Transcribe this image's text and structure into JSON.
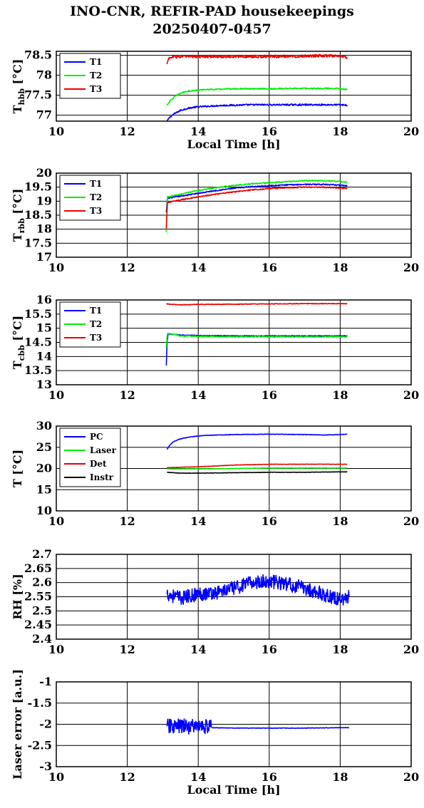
{
  "title": {
    "line1": "INO-CNR, REFIR-PAD housekeepings",
    "line2": "20250407-0457"
  },
  "colors": {
    "blue": "#0000ff",
    "green": "#00ee00",
    "red": "#ee0000",
    "black": "#000000"
  },
  "chart_data": [
    {
      "type": "line",
      "xlabel": "Local Time [h]",
      "ylabel_main": "T",
      "ylabel_sub": "hbb",
      "ylabel_tail": " [°C]",
      "xlim": [
        10,
        20
      ],
      "ylim": [
        76.85,
        78.6
      ],
      "xticks": [
        10,
        12,
        14,
        16,
        18,
        20
      ],
      "yticks": [
        77,
        77.5,
        78,
        78.5
      ],
      "ytick_labels": [
        "77",
        "77.5",
        "78",
        "78.5"
      ],
      "grid": true,
      "legend_position": "top-left",
      "series": [
        {
          "name": "T1",
          "color": "blue",
          "points": [
            [
              13.12,
              76.85
            ],
            [
              13.2,
              76.95
            ],
            [
              13.3,
              77.02
            ],
            [
              13.4,
              77.07
            ],
            [
              13.5,
              77.12
            ],
            [
              13.7,
              77.17
            ],
            [
              13.9,
              77.2
            ],
            [
              14.2,
              77.22
            ],
            [
              14.6,
              77.24
            ],
            [
              15,
              77.25
            ],
            [
              15.5,
              77.26
            ],
            [
              16,
              77.26
            ],
            [
              16.5,
              77.26
            ],
            [
              17,
              77.26
            ],
            [
              17.5,
              77.26
            ],
            [
              18,
              77.26
            ],
            [
              18.2,
              77.25
            ]
          ],
          "noise": 0.02
        },
        {
          "name": "T2",
          "color": "green",
          "points": [
            [
              13.12,
              77.25
            ],
            [
              13.2,
              77.35
            ],
            [
              13.3,
              77.44
            ],
            [
              13.4,
              77.5
            ],
            [
              13.5,
              77.55
            ],
            [
              13.7,
              77.6
            ],
            [
              13.9,
              77.62
            ],
            [
              14.2,
              77.64
            ],
            [
              14.6,
              77.65
            ],
            [
              15,
              77.66
            ],
            [
              15.5,
              77.66
            ],
            [
              16,
              77.66
            ],
            [
              16.5,
              77.67
            ],
            [
              17,
              77.67
            ],
            [
              17.5,
              77.67
            ],
            [
              18,
              77.67
            ],
            [
              18.2,
              77.64
            ]
          ],
          "noise": 0.015
        },
        {
          "name": "T3",
          "color": "red",
          "points": [
            [
              13.12,
              78.28
            ],
            [
              13.16,
              78.42
            ],
            [
              13.3,
              78.46
            ],
            [
              14,
              78.47
            ],
            [
              15,
              78.47
            ],
            [
              16,
              78.47
            ],
            [
              17,
              78.48
            ],
            [
              17.5,
              78.49
            ],
            [
              18,
              78.48
            ],
            [
              18.2,
              78.45
            ]
          ],
          "noise": 0.035
        }
      ]
    },
    {
      "type": "line",
      "xlabel": "",
      "ylabel_main": "T",
      "ylabel_sub": "rbb",
      "ylabel_tail": " [°C]",
      "xlim": [
        10,
        20
      ],
      "ylim": [
        17,
        20
      ],
      "xticks": [
        10,
        12,
        14,
        16,
        18,
        20
      ],
      "yticks": [
        17,
        17.5,
        18,
        18.5,
        19,
        19.5,
        20
      ],
      "ytick_labels": [
        "17",
        "17.5",
        "18",
        "18.5",
        "19",
        "19.5",
        "20"
      ],
      "grid": true,
      "legend_position": "top-left",
      "series": [
        {
          "name": "T1",
          "color": "blue",
          "points": [
            [
              13.1,
              18.6
            ],
            [
              13.13,
              19.1
            ],
            [
              13.5,
              19.18
            ],
            [
              14,
              19.28
            ],
            [
              14.5,
              19.38
            ],
            [
              15,
              19.46
            ],
            [
              15.5,
              19.52
            ],
            [
              16,
              19.55
            ],
            [
              16.5,
              19.58
            ],
            [
              17,
              19.6
            ],
            [
              17.5,
              19.6
            ],
            [
              18,
              19.57
            ],
            [
              18.2,
              19.55
            ]
          ],
          "noise": 0.02
        },
        {
          "name": "T2",
          "color": "green",
          "points": [
            [
              13.1,
              17.9
            ],
            [
              13.13,
              19.15
            ],
            [
              13.5,
              19.25
            ],
            [
              14,
              19.38
            ],
            [
              14.5,
              19.48
            ],
            [
              15,
              19.56
            ],
            [
              15.5,
              19.62
            ],
            [
              16,
              19.66
            ],
            [
              16.5,
              19.7
            ],
            [
              17,
              19.73
            ],
            [
              17.5,
              19.73
            ],
            [
              18,
              19.7
            ],
            [
              18.2,
              19.67
            ]
          ],
          "noise": 0.02
        },
        {
          "name": "T3",
          "color": "red",
          "points": [
            [
              13.1,
              18.0
            ],
            [
              13.13,
              18.95
            ],
            [
              13.5,
              19.05
            ],
            [
              14,
              19.15
            ],
            [
              14.5,
              19.25
            ],
            [
              15,
              19.33
            ],
            [
              15.5,
              19.4
            ],
            [
              16,
              19.45
            ],
            [
              16.5,
              19.48
            ],
            [
              17,
              19.5
            ],
            [
              17.5,
              19.5
            ],
            [
              18,
              19.47
            ],
            [
              18.2,
              19.45
            ]
          ],
          "noise": 0.02
        }
      ]
    },
    {
      "type": "line",
      "xlabel": "",
      "ylabel_main": "T",
      "ylabel_sub": "cbb",
      "ylabel_tail": " [°C]",
      "xlim": [
        10,
        20
      ],
      "ylim": [
        13,
        16
      ],
      "xticks": [
        10,
        12,
        14,
        16,
        18,
        20
      ],
      "yticks": [
        13,
        13.5,
        14,
        14.5,
        15,
        15.5,
        16
      ],
      "ytick_labels": [
        "13",
        "13.5",
        "14",
        "14.5",
        "15",
        "15.5",
        "16"
      ],
      "grid": true,
      "legend_position": "top-left",
      "series": [
        {
          "name": "T1",
          "color": "blue",
          "points": [
            [
              13.1,
              13.68
            ],
            [
              13.12,
              14.5
            ],
            [
              13.15,
              14.8
            ],
            [
              13.5,
              14.76
            ],
            [
              14,
              14.74
            ],
            [
              15,
              14.73
            ],
            [
              16,
              14.73
            ],
            [
              17,
              14.73
            ],
            [
              18,
              14.73
            ],
            [
              18.2,
              14.73
            ]
          ],
          "noise": 0.012
        },
        {
          "name": "T2",
          "color": "green",
          "points": [
            [
              13.1,
              14.3
            ],
            [
              13.13,
              14.82
            ],
            [
              13.5,
              14.73
            ],
            [
              14,
              14.71
            ],
            [
              15,
              14.7
            ],
            [
              16,
              14.7
            ],
            [
              17,
              14.7
            ],
            [
              18,
              14.7
            ],
            [
              18.2,
              14.7
            ]
          ],
          "noise": 0.02
        },
        {
          "name": "T3",
          "color": "red",
          "points": [
            [
              13.1,
              15.86
            ],
            [
              13.5,
              15.83
            ],
            [
              14,
              15.84
            ],
            [
              15,
              15.85
            ],
            [
              16,
              15.86
            ],
            [
              17,
              15.87
            ],
            [
              18,
              15.87
            ],
            [
              18.2,
              15.87
            ]
          ],
          "noise": 0.012
        }
      ]
    },
    {
      "type": "line",
      "xlabel": "",
      "ylabel_main": "T [°C]",
      "ylabel_sub": "",
      "ylabel_tail": "",
      "xlim": [
        10,
        20
      ],
      "ylim": [
        10,
        30
      ],
      "xticks": [
        10,
        12,
        14,
        16,
        18,
        20
      ],
      "yticks": [
        10,
        15,
        20,
        25,
        30
      ],
      "ytick_labels": [
        "10",
        "15",
        "20",
        "25",
        "30"
      ],
      "grid": true,
      "legend_position": "top-left",
      "series": [
        {
          "name": "PC",
          "color": "blue",
          "points": [
            [
              13.12,
              24.5
            ],
            [
              13.2,
              25.5
            ],
            [
              13.3,
              26.3
            ],
            [
              13.5,
              27.0
            ],
            [
              13.8,
              27.5
            ],
            [
              14.2,
              27.8
            ],
            [
              15,
              28.0
            ],
            [
              16,
              28.1
            ],
            [
              17,
              28.0
            ],
            [
              17.5,
              27.9
            ],
            [
              18,
              28.0
            ],
            [
              18.2,
              28.1
            ]
          ],
          "noise": 0.06
        },
        {
          "name": "Laser",
          "color": "green",
          "points": [
            [
              13.12,
              19.9
            ],
            [
              14,
              19.9
            ],
            [
              15,
              20.0
            ],
            [
              16,
              20.1
            ],
            [
              17,
              20.1
            ],
            [
              18,
              20.1
            ],
            [
              18.2,
              20.1
            ]
          ],
          "noise": 0.04
        },
        {
          "name": "Det",
          "color": "red",
          "points": [
            [
              13.12,
              20.2
            ],
            [
              14,
              20.4
            ],
            [
              14.5,
              20.6
            ],
            [
              15,
              20.8
            ],
            [
              16,
              21.0
            ],
            [
              17,
              21.0
            ],
            [
              18,
              21.0
            ],
            [
              18.2,
              21.0
            ]
          ],
          "noise": 0.04
        },
        {
          "name": "Instr",
          "color": "black",
          "points": [
            [
              13.12,
              19.1
            ],
            [
              13.5,
              18.9
            ],
            [
              14,
              18.9
            ],
            [
              15,
              19.0
            ],
            [
              16,
              19.1
            ],
            [
              17,
              19.1
            ],
            [
              18,
              19.2
            ],
            [
              18.2,
              19.2
            ]
          ],
          "noise": 0.04
        }
      ]
    },
    {
      "type": "line",
      "xlabel": "",
      "ylabel_main": "RH [%]",
      "ylabel_sub": "",
      "ylabel_tail": "",
      "xlim": [
        10,
        20
      ],
      "ylim": [
        2.4,
        2.7
      ],
      "xticks": [
        10,
        12,
        14,
        16,
        18,
        20
      ],
      "yticks": [
        2.4,
        2.45,
        2.5,
        2.55,
        2.6,
        2.65,
        2.7
      ],
      "ytick_labels": [
        "2.4",
        "2.45",
        "2.5",
        "2.55",
        "2.6",
        "2.65",
        "2.7"
      ],
      "grid": true,
      "legend_position": "none",
      "series": [
        {
          "name": "",
          "color": "blue",
          "points": [
            [
              13.12,
              2.56
            ],
            [
              13.5,
              2.545
            ],
            [
              14,
              2.56
            ],
            [
              14.5,
              2.565
            ],
            [
              15,
              2.58
            ],
            [
              15.5,
              2.6
            ],
            [
              16,
              2.605
            ],
            [
              16.5,
              2.595
            ],
            [
              17,
              2.58
            ],
            [
              17.5,
              2.56
            ],
            [
              18,
              2.54
            ],
            [
              18.25,
              2.55
            ]
          ],
          "noise": 0.025
        }
      ]
    },
    {
      "type": "line",
      "xlabel": "Local Time [h]",
      "ylabel_main": "Laser error [a.u.]",
      "ylabel_sub": "",
      "ylabel_tail": "",
      "xlim": [
        10,
        20
      ],
      "ylim": [
        -3,
        -1
      ],
      "xticks": [
        10,
        12,
        14,
        16,
        18,
        20
      ],
      "yticks": [
        -3,
        -2.5,
        -2,
        -1.5,
        -1
      ],
      "ytick_labels": [
        "-3",
        "-2.5",
        "-2",
        "-1.5",
        "-1"
      ],
      "grid": true,
      "legend_position": "none",
      "series": [
        {
          "name": "",
          "color": "blue",
          "points": [
            [
              13.12,
              -2.05
            ],
            [
              13.5,
              -2.05
            ],
            [
              14,
              -2.05
            ],
            [
              14.38,
              -2.05
            ]
          ],
          "noise": 0.18
        },
        {
          "name": "",
          "color": "blue",
          "points": [
            [
              14.38,
              -2.08
            ],
            [
              15,
              -2.09
            ],
            [
              16,
              -2.09
            ],
            [
              17,
              -2.09
            ],
            [
              18,
              -2.08
            ],
            [
              18.25,
              -2.08
            ]
          ],
          "noise": 0.005
        }
      ]
    }
  ]
}
